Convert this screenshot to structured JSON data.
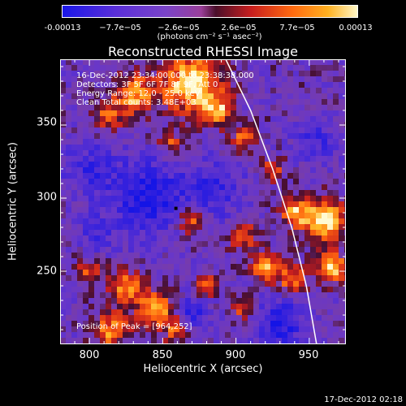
{
  "colorbar": {
    "tick_labels": [
      "-0.00013",
      "−7.7e−05",
      "−2.6e−05",
      "2.6e−05",
      "7.7e−05",
      "0.00013"
    ],
    "unit": "(photons cm⁻² s⁻¹ asec⁻²)",
    "range": [
      -0.00013,
      0.00013
    ]
  },
  "chart_data": {
    "type": "heatmap",
    "title": "Reconstructed RHESSI Image",
    "xlabel": "Heliocentric X (arcsec)",
    "ylabel": "Heliocentric Y (arcsec)",
    "xlim": [
      780,
      975
    ],
    "ylim": [
      200,
      395
    ],
    "x_ticks": [
      800,
      850,
      900,
      950
    ],
    "y_ticks": [
      250,
      300,
      350
    ],
    "x_tick_labels": [
      "800",
      "850",
      "900",
      "950"
    ],
    "y_tick_labels": [
      "250",
      "300",
      "350"
    ],
    "info_lines": [
      "16-Dec-2012 23:34:00.000 to 23:38:38.000",
      "Detectors: 3F 5F 6F 7F 8F 9F, Att 0",
      "Energy Range: 12.0 - 25.0 keV",
      "Clean    Total counts: 3.48E+03"
    ],
    "peak_label": "Position of Peak = [964,252]",
    "peak_position": [
      964,
      252
    ],
    "limb_points": [
      [
        893,
        395
      ],
      [
        910,
        360
      ],
      [
        925,
        320
      ],
      [
        938,
        280
      ],
      [
        948,
        240
      ],
      [
        955,
        200
      ]
    ],
    "hot_regions": [
      {
        "x": 830,
        "y": 370,
        "r": 14,
        "v": 0.8
      },
      {
        "x": 870,
        "y": 378,
        "r": 20,
        "v": 1.0
      },
      {
        "x": 888,
        "y": 360,
        "r": 10,
        "v": 0.7
      },
      {
        "x": 812,
        "y": 355,
        "r": 9,
        "v": 0.6
      },
      {
        "x": 855,
        "y": 338,
        "r": 8,
        "v": 0.5
      },
      {
        "x": 905,
        "y": 340,
        "r": 9,
        "v": 0.6
      },
      {
        "x": 925,
        "y": 320,
        "r": 8,
        "v": 0.55
      },
      {
        "x": 870,
        "y": 285,
        "r": 10,
        "v": 0.7
      },
      {
        "x": 905,
        "y": 275,
        "r": 10,
        "v": 0.6
      },
      {
        "x": 940,
        "y": 290,
        "r": 10,
        "v": 0.75
      },
      {
        "x": 960,
        "y": 285,
        "r": 14,
        "v": 1.0
      },
      {
        "x": 965,
        "y": 252,
        "r": 10,
        "v": 1.0
      },
      {
        "x": 938,
        "y": 245,
        "r": 10,
        "v": 0.7
      },
      {
        "x": 920,
        "y": 253,
        "r": 9,
        "v": 0.85
      },
      {
        "x": 880,
        "y": 240,
        "r": 8,
        "v": 0.5
      },
      {
        "x": 905,
        "y": 225,
        "r": 8,
        "v": 0.5
      },
      {
        "x": 800,
        "y": 250,
        "r": 9,
        "v": 0.5
      },
      {
        "x": 825,
        "y": 238,
        "r": 12,
        "v": 0.7
      },
      {
        "x": 845,
        "y": 225,
        "r": 12,
        "v": 0.8
      },
      {
        "x": 815,
        "y": 210,
        "r": 12,
        "v": 0.7
      },
      {
        "x": 860,
        "y": 210,
        "r": 10,
        "v": 0.6
      }
    ],
    "cold_regions": [
      {
        "x": 840,
        "y": 300,
        "r": 26,
        "v": -0.7
      },
      {
        "x": 885,
        "y": 305,
        "r": 20,
        "v": -0.5
      },
      {
        "x": 800,
        "y": 320,
        "r": 18,
        "v": -0.45
      },
      {
        "x": 930,
        "y": 215,
        "r": 16,
        "v": -0.7
      },
      {
        "x": 870,
        "y": 220,
        "r": 12,
        "v": -0.6
      },
      {
        "x": 955,
        "y": 340,
        "r": 14,
        "v": -0.45
      },
      {
        "x": 805,
        "y": 275,
        "r": 12,
        "v": -0.4
      }
    ]
  },
  "footer": "17-Dec-2012 02:18"
}
